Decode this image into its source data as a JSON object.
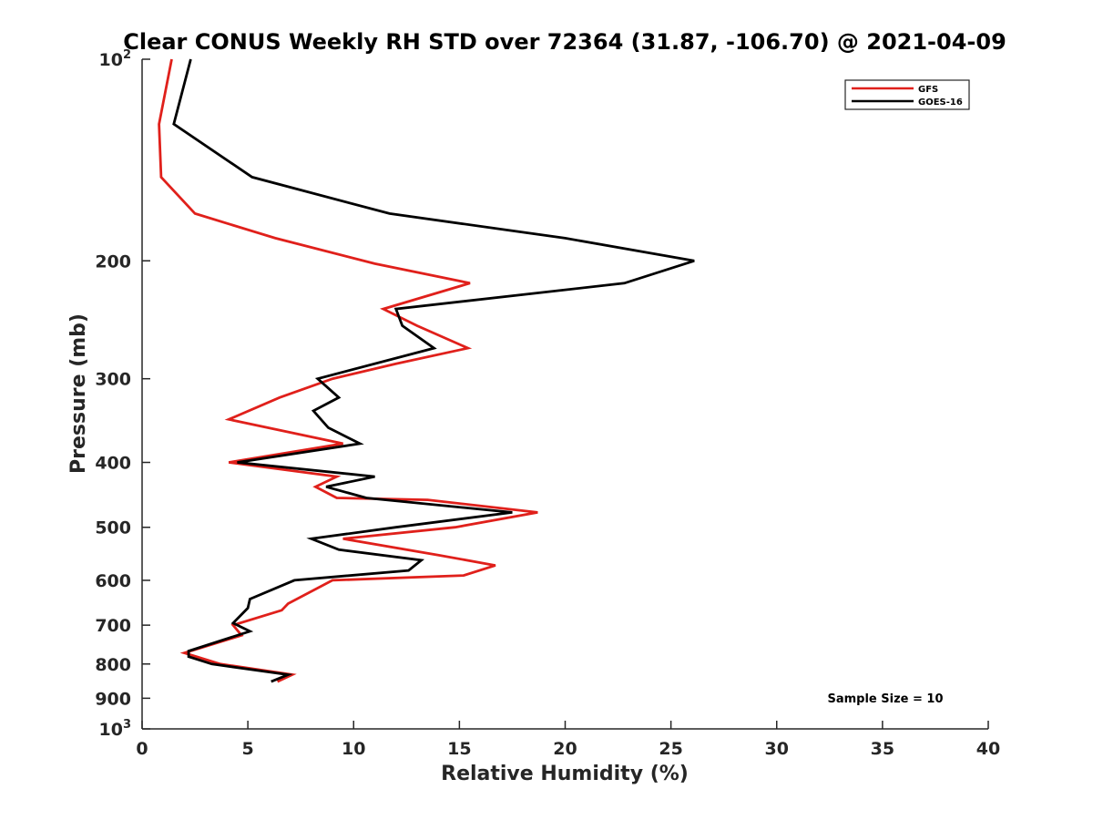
{
  "chart_data": {
    "type": "line",
    "title": "Clear CONUS Weekly RH STD over 72364 (31.87, -106.70) @ 2021-04-09",
    "xlabel": "Relative Humidity (%)",
    "ylabel": "Pressure (mb)",
    "xlim": [
      0,
      40
    ],
    "ylim": [
      100,
      1000
    ],
    "y_scale": "log",
    "y_reversed": true,
    "x_ticks": [
      0,
      5,
      10,
      15,
      20,
      25,
      30,
      35,
      40
    ],
    "y_ticks": [
      {
        "value": 100,
        "label": "10",
        "sup": "2"
      },
      {
        "value": 200,
        "label": "200",
        "sup": ""
      },
      {
        "value": 300,
        "label": "300",
        "sup": ""
      },
      {
        "value": 400,
        "label": "400",
        "sup": ""
      },
      {
        "value": 500,
        "label": "500",
        "sup": ""
      },
      {
        "value": 600,
        "label": "600",
        "sup": ""
      },
      {
        "value": 700,
        "label": "700",
        "sup": ""
      },
      {
        "value": 800,
        "label": "800",
        "sup": ""
      },
      {
        "value": 900,
        "label": "900",
        "sup": ""
      },
      {
        "value": 1000,
        "label": "10",
        "sup": "3"
      }
    ],
    "grid": false,
    "legend_position": "top-right",
    "annotation": "Sample Size = 10",
    "series": [
      {
        "name": "GFS",
        "color": "#e0201b",
        "points": [
          {
            "x": 1.4,
            "y": 100
          },
          {
            "x": 0.8,
            "y": 125
          },
          {
            "x": 0.9,
            "y": 150
          },
          {
            "x": 2.5,
            "y": 170
          },
          {
            "x": 6.3,
            "y": 185
          },
          {
            "x": 11.0,
            "y": 202
          },
          {
            "x": 15.5,
            "y": 216
          },
          {
            "x": 11.4,
            "y": 236
          },
          {
            "x": 13.0,
            "y": 250
          },
          {
            "x": 15.4,
            "y": 270
          },
          {
            "x": 12.0,
            "y": 285
          },
          {
            "x": 9.0,
            "y": 300
          },
          {
            "x": 6.5,
            "y": 320
          },
          {
            "x": 4.1,
            "y": 345
          },
          {
            "x": 9.5,
            "y": 375
          },
          {
            "x": 4.1,
            "y": 400
          },
          {
            "x": 9.2,
            "y": 420
          },
          {
            "x": 8.2,
            "y": 435
          },
          {
            "x": 9.2,
            "y": 452
          },
          {
            "x": 13.5,
            "y": 455
          },
          {
            "x": 18.7,
            "y": 475
          },
          {
            "x": 14.8,
            "y": 500
          },
          {
            "x": 9.5,
            "y": 520
          },
          {
            "x": 14.0,
            "y": 550
          },
          {
            "x": 16.7,
            "y": 570
          },
          {
            "x": 15.2,
            "y": 590
          },
          {
            "x": 9.0,
            "y": 600
          },
          {
            "x": 6.9,
            "y": 650
          },
          {
            "x": 6.6,
            "y": 665
          },
          {
            "x": 4.3,
            "y": 700
          },
          {
            "x": 4.7,
            "y": 725
          },
          {
            "x": 2.0,
            "y": 770
          },
          {
            "x": 3.7,
            "y": 800
          },
          {
            "x": 7.1,
            "y": 830
          },
          {
            "x": 6.4,
            "y": 850
          }
        ]
      },
      {
        "name": "GOES-16",
        "color": "#000000",
        "points": [
          {
            "x": 2.3,
            "y": 100
          },
          {
            "x": 1.5,
            "y": 125
          },
          {
            "x": 5.2,
            "y": 150
          },
          {
            "x": 11.7,
            "y": 170
          },
          {
            "x": 20.0,
            "y": 185
          },
          {
            "x": 26.1,
            "y": 200
          },
          {
            "x": 22.8,
            "y": 216
          },
          {
            "x": 12.0,
            "y": 236
          },
          {
            "x": 12.3,
            "y": 250
          },
          {
            "x": 13.8,
            "y": 270
          },
          {
            "x": 8.3,
            "y": 300
          },
          {
            "x": 9.3,
            "y": 320
          },
          {
            "x": 8.1,
            "y": 335
          },
          {
            "x": 8.8,
            "y": 355
          },
          {
            "x": 10.3,
            "y": 375
          },
          {
            "x": 4.5,
            "y": 400
          },
          {
            "x": 11.0,
            "y": 420
          },
          {
            "x": 8.7,
            "y": 435
          },
          {
            "x": 10.6,
            "y": 452
          },
          {
            "x": 17.5,
            "y": 475
          },
          {
            "x": 12.0,
            "y": 500
          },
          {
            "x": 8.0,
            "y": 520
          },
          {
            "x": 9.3,
            "y": 540
          },
          {
            "x": 13.2,
            "y": 560
          },
          {
            "x": 12.6,
            "y": 580
          },
          {
            "x": 7.2,
            "y": 600
          },
          {
            "x": 5.1,
            "y": 640
          },
          {
            "x": 5.0,
            "y": 660
          },
          {
            "x": 4.3,
            "y": 695
          },
          {
            "x": 5.1,
            "y": 715
          },
          {
            "x": 2.2,
            "y": 765
          },
          {
            "x": 2.2,
            "y": 780
          },
          {
            "x": 3.3,
            "y": 800
          },
          {
            "x": 6.9,
            "y": 830
          },
          {
            "x": 6.1,
            "y": 850
          }
        ]
      }
    ]
  }
}
